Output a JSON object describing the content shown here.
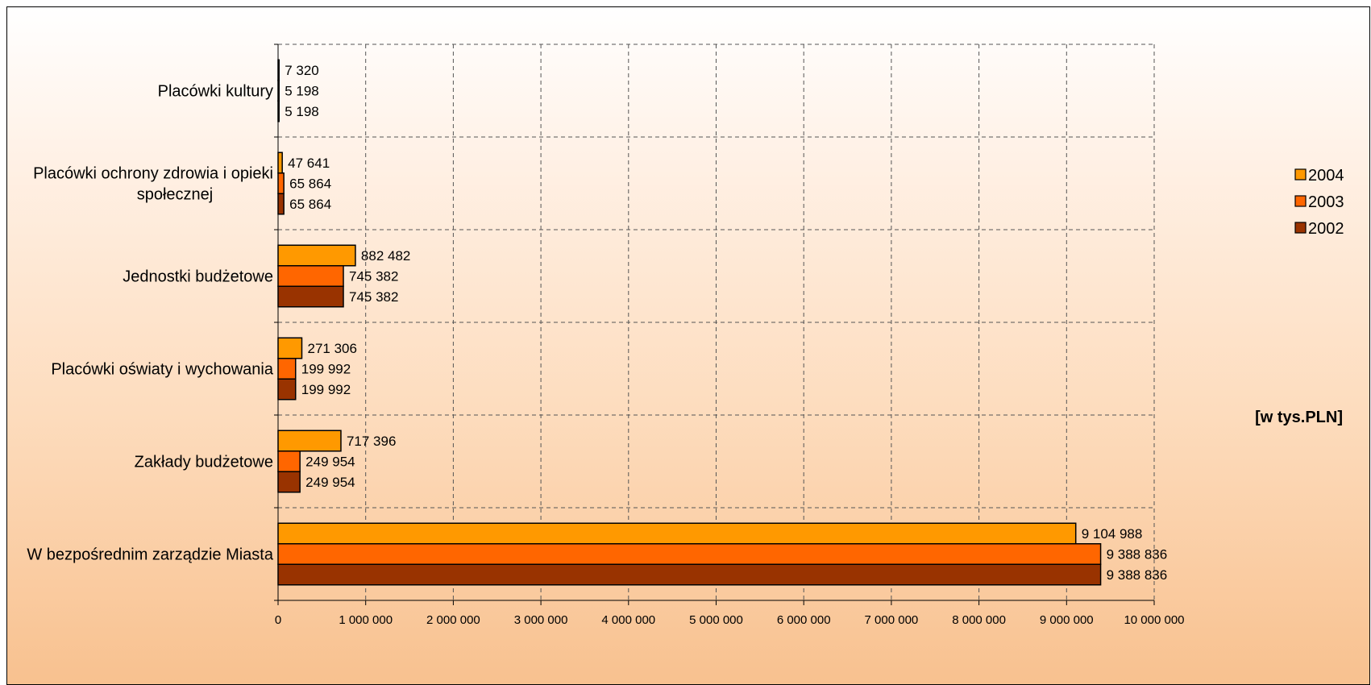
{
  "chart_data": {
    "type": "bar",
    "orientation": "horizontal",
    "unit_label": "[w tys.PLN]",
    "categories": [
      "Placówki kultury",
      "Placówki ochrony zdrowia i opieki społecznej",
      "Jednostki budżetowe",
      "Placówki oświaty i wychowania",
      "Zakłady budżetowe",
      "W bezpośrednim zarządzie Miasta"
    ],
    "category_lines": [
      [
        "Placówki kultury"
      ],
      [
        "Placówki ochrony zdrowia i opieki",
        "społecznej"
      ],
      [
        "Jednostki budżetowe"
      ],
      [
        "Placówki oświaty i wychowania"
      ],
      [
        "Zakłady budżetowe"
      ],
      [
        "W bezpośrednim zarządzie Miasta"
      ]
    ],
    "series": [
      {
        "name": "2004",
        "color": "#ff9900",
        "values": [
          7320,
          47641,
          882482,
          271306,
          717396,
          9104988
        ],
        "labels": [
          "7 320",
          "47 641",
          "882 482",
          "271 306",
          "717 396",
          "9 104 988"
        ]
      },
      {
        "name": "2003",
        "color": "#ff6600",
        "values": [
          5198,
          65864,
          745382,
          199992,
          249954,
          9388836
        ],
        "labels": [
          "5 198",
          "65 864",
          "745 382",
          "199 992",
          "249 954",
          "9 388 836"
        ]
      },
      {
        "name": "2002",
        "color": "#993300",
        "values": [
          5198,
          65864,
          745382,
          199992,
          249954,
          9388836
        ],
        "labels": [
          "5 198",
          "65 864",
          "745 382",
          "199 992",
          "249 954",
          "9 388 836"
        ]
      }
    ],
    "xlim": [
      0,
      10000000
    ],
    "x_ticks": [
      0,
      1000000,
      2000000,
      3000000,
      4000000,
      5000000,
      6000000,
      7000000,
      8000000,
      9000000,
      10000000
    ],
    "x_tick_labels": [
      "0",
      "1 000 000",
      "2 000 000",
      "3 000 000",
      "4 000 000",
      "5 000 000",
      "6 000 000",
      "7 000 000",
      "8 000 000",
      "9 000 000",
      "10 000 000"
    ],
    "grid": true,
    "grid_style": "dashed",
    "legend_position": "right"
  }
}
